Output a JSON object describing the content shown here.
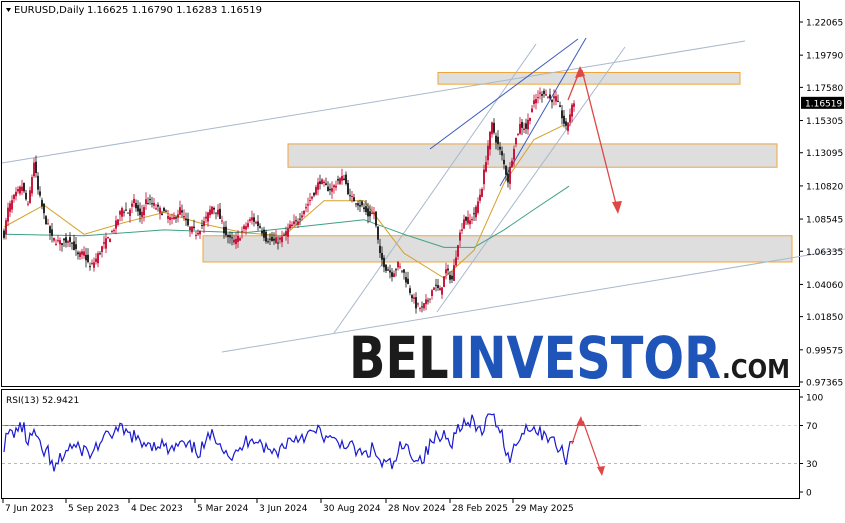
{
  "header": {
    "symbol_line": "EURUSD,Daily",
    "ohlc": "1.16625 1.16790 1.16283 1.16519"
  },
  "watermark": {
    "brand_dark": "BEL",
    "brand_blue": "INVESTOR",
    "suffix": ".COM"
  },
  "colors": {
    "bull": "#c2002a",
    "bear": "#111111",
    "ma_fast": "#d4a22a",
    "ma_slow": "#3f9f85",
    "channel": "#a9b8cc",
    "channel_dark": "#3b5bbf",
    "zone_fill": "#dedede",
    "zone_border": "#f0a53a",
    "arrow": "#e04646",
    "rsi": "#1a1ad0",
    "rsi_level": "#b05050",
    "watermark_dark": "#1b1b1b",
    "watermark_blue": "#1f55b8"
  },
  "chart_data": [
    {
      "type": "candlestick",
      "title": "EURUSD,Daily",
      "ylim": [
        0.97365,
        1.22065
      ],
      "y_ticks": [
        "1.22065",
        "1.19790",
        "1.17580",
        "1.15305",
        "1.13095",
        "1.10820",
        "1.08545",
        "1.06335",
        "1.04060",
        "1.01850",
        "0.99575",
        "0.97365"
      ],
      "current_price": "1.16519",
      "x_ticks": [
        "7 Jun 2023",
        "5 Sep 2023",
        "4 Dec 2023",
        "5 Mar 2024",
        "3 Jun 2024",
        "30 Aug 2024",
        "28 Nov 2024",
        "28 Feb 2025",
        "29 May 2025"
      ],
      "price_path": [
        [
          0,
          1.075
        ],
        [
          4,
          1.092
        ],
        [
          10,
          1.1
        ],
        [
          18,
          1.108
        ],
        [
          24,
          1.094
        ],
        [
          30,
          1.125
        ],
        [
          34,
          1.105
        ],
        [
          40,
          1.088
        ],
        [
          48,
          1.072
        ],
        [
          56,
          1.069
        ],
        [
          66,
          1.072
        ],
        [
          74,
          1.06
        ],
        [
          80,
          1.062
        ],
        [
          86,
          1.052
        ],
        [
          92,
          1.058
        ],
        [
          98,
          1.066
        ],
        [
          106,
          1.074
        ],
        [
          112,
          1.082
        ],
        [
          118,
          1.093
        ],
        [
          124,
          1.09
        ],
        [
          130,
          1.097
        ],
        [
          136,
          1.087
        ],
        [
          142,
          1.098
        ],
        [
          148,
          1.096
        ],
        [
          154,
          1.092
        ],
        [
          160,
          1.09
        ],
        [
          168,
          1.084
        ],
        [
          176,
          1.092
        ],
        [
          184,
          1.08
        ],
        [
          192,
          1.076
        ],
        [
          200,
          1.083
        ],
        [
          208,
          1.094
        ],
        [
          214,
          1.09
        ],
        [
          220,
          1.078
        ],
        [
          226,
          1.071
        ],
        [
          232,
          1.07
        ],
        [
          240,
          1.079
        ],
        [
          248,
          1.086
        ],
        [
          256,
          1.08
        ],
        [
          262,
          1.072
        ],
        [
          270,
          1.07
        ],
        [
          278,
          1.072
        ],
        [
          286,
          1.08
        ],
        [
          292,
          1.083
        ],
        [
          298,
          1.09
        ],
        [
          304,
          1.096
        ],
        [
          310,
          1.104
        ],
        [
          316,
          1.112
        ],
        [
          322,
          1.107
        ],
        [
          328,
          1.106
        ],
        [
          334,
          1.112
        ],
        [
          340,
          1.114
        ],
        [
          346,
          1.1
        ],
        [
          352,
          1.098
        ],
        [
          358,
          1.094
        ],
        [
          364,
          1.088
        ],
        [
          370,
          1.09
        ],
        [
          376,
          1.06
        ],
        [
          382,
          1.052
        ],
        [
          388,
          1.048
        ],
        [
          394,
          1.054
        ],
        [
          400,
          1.048
        ],
        [
          406,
          1.036
        ],
        [
          412,
          1.026
        ],
        [
          418,
          1.024
        ],
        [
          424,
          1.03
        ],
        [
          430,
          1.04
        ],
        [
          436,
          1.036
        ],
        [
          442,
          1.05
        ],
        [
          448,
          1.044
        ],
        [
          454,
          1.07
        ],
        [
          460,
          1.086
        ],
        [
          466,
          1.084
        ],
        [
          472,
          1.092
        ],
        [
          478,
          1.108
        ],
        [
          484,
          1.136
        ],
        [
          488,
          1.15
        ],
        [
          492,
          1.14
        ],
        [
          498,
          1.128
        ],
        [
          504,
          1.112
        ],
        [
          510,
          1.136
        ],
        [
          516,
          1.15
        ],
        [
          522,
          1.148
        ],
        [
          528,
          1.162
        ],
        [
          534,
          1.17
        ],
        [
          540,
          1.173
        ],
        [
          546,
          1.168
        ],
        [
          552,
          1.168
        ],
        [
          558,
          1.156
        ],
        [
          562,
          1.147
        ],
        [
          566,
          1.158
        ],
        [
          570,
          1.166
        ]
      ],
      "moving_average_fast": [
        [
          0,
          1.08
        ],
        [
          40,
          1.095
        ],
        [
          80,
          1.075
        ],
        [
          120,
          1.083
        ],
        [
          160,
          1.09
        ],
        [
          200,
          1.082
        ],
        [
          240,
          1.076
        ],
        [
          280,
          1.074
        ],
        [
          320,
          1.098
        ],
        [
          360,
          1.098
        ],
        [
          400,
          1.062
        ],
        [
          440,
          1.045
        ],
        [
          470,
          1.064
        ],
        [
          500,
          1.11
        ],
        [
          530,
          1.14
        ],
        [
          560,
          1.15
        ]
      ],
      "moving_average_slow": [
        [
          0,
          1.075
        ],
        [
          80,
          1.074
        ],
        [
          160,
          1.078
        ],
        [
          240,
          1.076
        ],
        [
          320,
          1.082
        ],
        [
          360,
          1.085
        ],
        [
          400,
          1.075
        ],
        [
          440,
          1.066
        ],
        [
          470,
          1.066
        ],
        [
          500,
          1.078
        ],
        [
          530,
          1.092
        ],
        [
          565,
          1.108
        ]
      ],
      "resistance_zones": [
        {
          "from": 1.178,
          "to": 1.186
        },
        {
          "from": 1.121,
          "to": 1.137
        },
        {
          "from": 1.056,
          "to": 1.074
        }
      ],
      "annotations": [
        "arrow up toward 1.18",
        "arrow down toward 1.09"
      ]
    },
    {
      "type": "line",
      "title": "RSI(13) 52.9421",
      "ylim": [
        0,
        100
      ],
      "y_ticks": [
        "100",
        "70",
        "30",
        "0"
      ],
      "levels": [
        70,
        30
      ],
      "last_value": 52.9421
    }
  ]
}
